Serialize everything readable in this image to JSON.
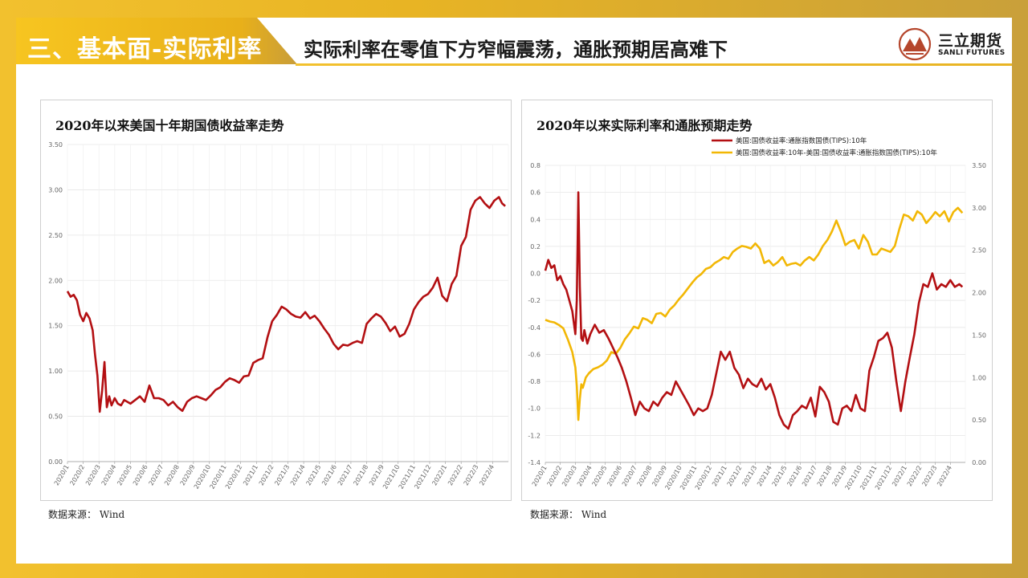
{
  "header": {
    "section_title": "三、基本面-实际利率",
    "headline": "实际利率在零值下方窄幅震荡，通胀预期居高难下",
    "logo": {
      "name_cn": "三立期货",
      "name_en": "SANLI FUTURES",
      "accent": "#b5462c"
    }
  },
  "colors": {
    "red_series": "#b30f12",
    "gold_series": "#f2b705",
    "banner": "#f2c12e"
  },
  "chart_data": [
    {
      "type": "line",
      "title": "2020年以来美国十年期国债收益率走势",
      "source": "数据来源： Wind",
      "x_ticks": [
        "2020/1",
        "2020/2",
        "2020/3",
        "2020/4",
        "2020/5",
        "2020/6",
        "2020/7",
        "2020/8",
        "2020/9",
        "2020/10",
        "2020/11",
        "2020/12",
        "2021/1",
        "2021/2",
        "2021/3",
        "2021/4",
        "2021/5",
        "2021/6",
        "2021/7",
        "2021/8",
        "2021/9",
        "2021/10",
        "2021/11",
        "2021/12",
        "2022/1",
        "2022/2",
        "2022/3",
        "2022/4"
      ],
      "y_ticks": [
        "0.00",
        "0.50",
        "1.00",
        "1.50",
        "2.00",
        "2.50",
        "3.00",
        "3.50"
      ],
      "ylim": [
        0,
        3.5
      ],
      "grid": true,
      "series": [
        {
          "color": "#b30f12",
          "x": [
            0,
            0.2,
            0.4,
            0.6,
            0.8,
            1.0,
            1.2,
            1.4,
            1.6,
            1.75,
            1.9,
            2.05,
            2.2,
            2.35,
            2.5,
            2.65,
            2.8,
            3.0,
            3.2,
            3.4,
            3.6,
            3.8,
            4.0,
            4.3,
            4.6,
            4.9,
            5.2,
            5.5,
            5.8,
            6.1,
            6.4,
            6.7,
            7.0,
            7.3,
            7.6,
            7.9,
            8.2,
            8.5,
            8.8,
            9.1,
            9.4,
            9.7,
            10.0,
            10.3,
            10.6,
            10.9,
            11.2,
            11.5,
            11.8,
            12.1,
            12.4,
            12.7,
            13.0,
            13.3,
            13.6,
            13.9,
            14.2,
            14.5,
            14.8,
            15.1,
            15.4,
            15.7,
            16.0,
            16.3,
            16.6,
            16.9,
            17.2,
            17.5,
            17.8,
            18.1,
            18.4,
            18.7,
            19.0,
            19.3,
            19.6,
            19.9,
            20.2,
            20.5,
            20.8,
            21.1,
            21.4,
            21.7,
            22.0,
            22.3,
            22.6,
            22.9,
            23.2,
            23.5,
            23.8,
            24.1,
            24.4,
            24.7,
            25.0,
            25.3,
            25.6,
            25.9,
            26.2,
            26.5,
            26.8,
            27.1,
            27.4,
            27.6,
            27.8
          ],
          "y": [
            1.88,
            1.82,
            1.84,
            1.78,
            1.62,
            1.55,
            1.64,
            1.58,
            1.45,
            1.18,
            0.95,
            0.55,
            0.78,
            1.1,
            0.6,
            0.72,
            0.62,
            0.7,
            0.64,
            0.62,
            0.68,
            0.66,
            0.64,
            0.68,
            0.72,
            0.66,
            0.84,
            0.7,
            0.7,
            0.68,
            0.62,
            0.66,
            0.6,
            0.56,
            0.66,
            0.7,
            0.72,
            0.7,
            0.68,
            0.73,
            0.79,
            0.82,
            0.88,
            0.92,
            0.9,
            0.87,
            0.94,
            0.95,
            1.09,
            1.12,
            1.14,
            1.37,
            1.55,
            1.62,
            1.71,
            1.68,
            1.63,
            1.6,
            1.59,
            1.65,
            1.58,
            1.61,
            1.55,
            1.47,
            1.4,
            1.3,
            1.24,
            1.29,
            1.28,
            1.31,
            1.33,
            1.31,
            1.52,
            1.58,
            1.63,
            1.6,
            1.53,
            1.44,
            1.49,
            1.38,
            1.41,
            1.52,
            1.68,
            1.76,
            1.82,
            1.85,
            1.92,
            2.03,
            1.83,
            1.77,
            1.96,
            2.05,
            2.38,
            2.48,
            2.78,
            2.88,
            2.92,
            2.85,
            2.8,
            2.88,
            2.92,
            2.85,
            2.82
          ]
        }
      ]
    },
    {
      "type": "line",
      "title": "2020年以来实际利率和通胀预期走势",
      "source": "数据来源： Wind",
      "x_ticks": [
        "2020/1",
        "2020/2",
        "2020/3",
        "2020/4",
        "2020/5",
        "2020/6",
        "2020/7",
        "2020/8",
        "2020/9",
        "2020/10",
        "2020/11",
        "2020/12",
        "2021/1",
        "2021/2",
        "2021/3",
        "2021/4",
        "2021/5",
        "2021/6",
        "2021/7",
        "2021/8",
        "2021/9",
        "2021/10",
        "2021/11",
        "2021/12",
        "2022/1",
        "2022/2",
        "2022/3",
        "2022/4"
      ],
      "y_ticks_left": [
        "-1.4",
        "-1.2",
        "-1.0",
        "-0.8",
        "-0.6",
        "-0.4",
        "-0.2",
        "0.0",
        "0.2",
        "0.4",
        "0.6",
        "0.8"
      ],
      "y_ticks_right": [
        "0.00",
        "0.50",
        "1.00",
        "1.50",
        "2.00",
        "2.50",
        "3.00",
        "3.50"
      ],
      "ylim_left": [
        -1.4,
        0.8
      ],
      "ylim_right": [
        0,
        3.5
      ],
      "legend_position": "top-right",
      "grid": true,
      "series": [
        {
          "name": "美国:国债收益率:通胀指数国债(TIPS):10年",
          "axis": "left",
          "color": "#b30f12",
          "x": [
            0,
            0.2,
            0.4,
            0.6,
            0.8,
            1.0,
            1.2,
            1.4,
            1.6,
            1.8,
            2.0,
            2.1,
            2.2,
            2.3,
            2.4,
            2.5,
            2.6,
            2.8,
            3.0,
            3.3,
            3.6,
            3.9,
            4.2,
            4.5,
            4.8,
            5.1,
            5.4,
            5.7,
            6.0,
            6.3,
            6.6,
            6.9,
            7.2,
            7.5,
            7.8,
            8.1,
            8.4,
            8.7,
            9.0,
            9.3,
            9.6,
            9.9,
            10.2,
            10.5,
            10.8,
            11.1,
            11.4,
            11.7,
            12.0,
            12.3,
            12.6,
            12.9,
            13.2,
            13.5,
            13.8,
            14.1,
            14.4,
            14.7,
            15.0,
            15.3,
            15.6,
            15.9,
            16.2,
            16.5,
            16.8,
            17.1,
            17.4,
            17.7,
            18.0,
            18.3,
            18.6,
            18.9,
            19.2,
            19.5,
            19.8,
            20.1,
            20.4,
            20.7,
            21.0,
            21.3,
            21.6,
            21.9,
            22.2,
            22.5,
            22.8,
            23.1,
            23.4,
            23.7,
            24.0,
            24.3,
            24.6,
            24.9,
            25.2,
            25.5,
            25.8,
            26.1,
            26.4,
            26.7,
            27.0,
            27.3,
            27.6,
            27.8
          ],
          "y": [
            0.02,
            0.1,
            0.04,
            0.06,
            -0.05,
            -0.02,
            -0.08,
            -0.12,
            -0.2,
            -0.28,
            -0.45,
            -0.2,
            0.6,
            -0.1,
            -0.48,
            -0.5,
            -0.42,
            -0.52,
            -0.45,
            -0.38,
            -0.44,
            -0.42,
            -0.48,
            -0.55,
            -0.62,
            -0.7,
            -0.8,
            -0.92,
            -1.05,
            -0.95,
            -1.0,
            -1.02,
            -0.95,
            -0.98,
            -0.92,
            -0.88,
            -0.9,
            -0.8,
            -0.86,
            -0.92,
            -0.98,
            -1.05,
            -1.0,
            -1.02,
            -1.0,
            -0.9,
            -0.74,
            -0.58,
            -0.64,
            -0.58,
            -0.7,
            -0.75,
            -0.85,
            -0.78,
            -0.82,
            -0.84,
            -0.78,
            -0.86,
            -0.82,
            -0.92,
            -1.05,
            -1.12,
            -1.15,
            -1.05,
            -1.02,
            -0.98,
            -1.0,
            -0.92,
            -1.06,
            -0.84,
            -0.88,
            -0.95,
            -1.1,
            -1.12,
            -1.0,
            -0.98,
            -1.02,
            -0.9,
            -1.0,
            -1.02,
            -0.72,
            -0.62,
            -0.5,
            -0.48,
            -0.44,
            -0.55,
            -0.8,
            -1.02,
            -0.8,
            -0.62,
            -0.45,
            -0.22,
            -0.08,
            -0.1,
            0.0,
            -0.12,
            -0.08,
            -0.1,
            -0.05,
            -0.1,
            -0.08,
            -0.1
          ]
        },
        {
          "name": "美国:国债收益率:10年-美国:国债收益率:通胀指数国债(TIPS):10年",
          "axis": "right",
          "color": "#f2b705",
          "x": [
            0,
            0.3,
            0.6,
            0.9,
            1.2,
            1.5,
            1.8,
            2.0,
            2.1,
            2.2,
            2.3,
            2.4,
            2.5,
            2.7,
            2.9,
            3.2,
            3.5,
            3.8,
            4.1,
            4.4,
            4.7,
            5.0,
            5.3,
            5.6,
            5.9,
            6.2,
            6.5,
            6.8,
            7.1,
            7.4,
            7.7,
            8.0,
            8.3,
            8.6,
            8.9,
            9.2,
            9.5,
            9.8,
            10.1,
            10.4,
            10.7,
            11.0,
            11.3,
            11.6,
            11.9,
            12.2,
            12.5,
            12.8,
            13.1,
            13.4,
            13.7,
            14.0,
            14.3,
            14.6,
            14.9,
            15.2,
            15.5,
            15.8,
            16.1,
            16.4,
            16.7,
            17.0,
            17.3,
            17.6,
            17.9,
            18.2,
            18.5,
            18.8,
            19.1,
            19.4,
            19.7,
            20.0,
            20.3,
            20.6,
            20.9,
            21.2,
            21.5,
            21.8,
            22.1,
            22.4,
            22.7,
            23.0,
            23.3,
            23.6,
            23.9,
            24.2,
            24.5,
            24.8,
            25.1,
            25.4,
            25.7,
            26.0,
            26.3,
            26.6,
            26.9,
            27.2,
            27.5,
            27.8
          ],
          "y": [
            1.68,
            1.66,
            1.65,
            1.62,
            1.58,
            1.45,
            1.3,
            1.12,
            0.9,
            0.5,
            0.75,
            0.92,
            0.88,
            1.0,
            1.05,
            1.1,
            1.12,
            1.15,
            1.2,
            1.3,
            1.28,
            1.35,
            1.45,
            1.52,
            1.6,
            1.58,
            1.7,
            1.68,
            1.64,
            1.75,
            1.76,
            1.72,
            1.8,
            1.85,
            1.92,
            1.98,
            2.05,
            2.12,
            2.18,
            2.22,
            2.28,
            2.3,
            2.35,
            2.38,
            2.42,
            2.4,
            2.48,
            2.52,
            2.55,
            2.54,
            2.52,
            2.58,
            2.52,
            2.35,
            2.38,
            2.32,
            2.36,
            2.42,
            2.32,
            2.34,
            2.35,
            2.32,
            2.38,
            2.42,
            2.38,
            2.45,
            2.55,
            2.62,
            2.72,
            2.85,
            2.72,
            2.56,
            2.6,
            2.62,
            2.52,
            2.68,
            2.6,
            2.45,
            2.45,
            2.52,
            2.5,
            2.48,
            2.55,
            2.75,
            2.92,
            2.9,
            2.85,
            2.96,
            2.92,
            2.82,
            2.88,
            2.95,
            2.9,
            2.96,
            2.84,
            2.95,
            3.0,
            2.94
          ]
        }
      ]
    }
  ]
}
